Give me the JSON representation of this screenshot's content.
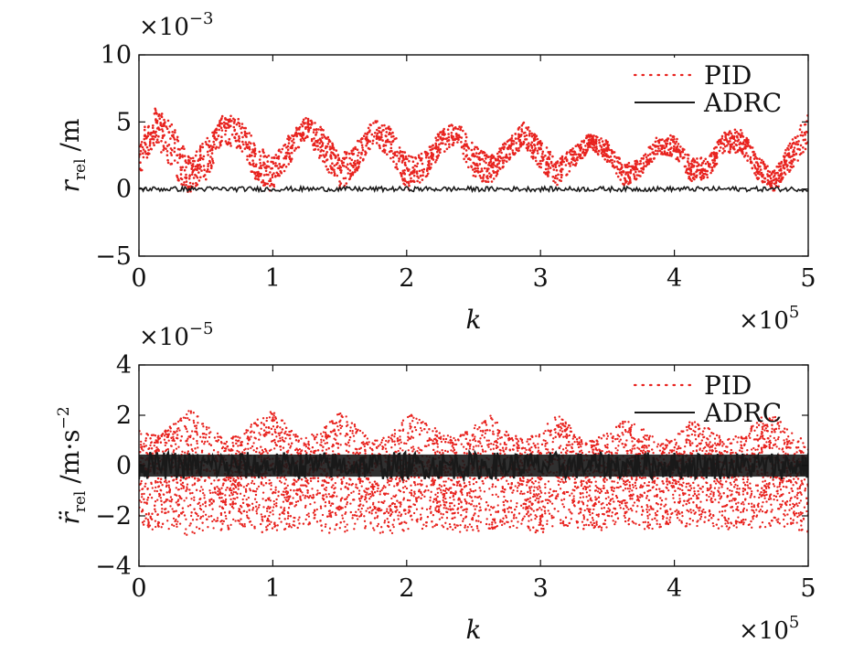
{
  "chart_data": [
    {
      "type": "scatter",
      "xlabel": "k",
      "x_multiplier": "×10",
      "x_exponent": "5",
      "ylabel_symbol": "r",
      "ylabel_subscript": "rel",
      "ylabel_unit": "/m",
      "y_multiplier": "×10",
      "y_exponent": "−3",
      "xlim": [
        0,
        5
      ],
      "ylim": [
        -5,
        10
      ],
      "x_ticks": [
        0,
        1,
        2,
        3,
        4,
        5
      ],
      "x_tick_labels": [
        "0",
        "1",
        "2",
        "3",
        "4",
        "5"
      ],
      "y_ticks": [
        -5,
        0,
        5,
        10
      ],
      "y_tick_labels": [
        "−5",
        "0",
        "5",
        "10"
      ],
      "grid": false,
      "legend_position": "top-right",
      "legend": [
        "PID",
        "ADRC"
      ],
      "series": [
        {
          "name": "PID",
          "style": "dotted",
          "color": "#e8231f",
          "x": [
            0,
            0.125,
            0.25,
            0.375,
            0.5,
            0.625,
            0.75,
            0.875,
            1.0,
            1.125,
            1.25,
            1.375,
            1.5,
            1.625,
            1.75,
            1.875,
            2.0,
            2.125,
            2.25,
            2.375,
            2.5,
            2.625,
            2.75,
            2.875,
            3.0,
            3.125,
            3.25,
            3.375,
            3.5,
            3.625,
            3.75,
            3.875,
            4.0,
            4.125,
            4.25,
            4.375,
            4.5,
            4.625,
            4.75,
            4.875,
            5.0
          ],
          "center": [
            2.5,
            4.8,
            3.0,
            1.0,
            2.2,
            4.4,
            4.2,
            2.0,
            1.0,
            3.0,
            4.6,
            3.2,
            1.2,
            2.4,
            4.3,
            3.5,
            1.2,
            1.6,
            3.4,
            4.3,
            2.0,
            1.4,
            2.8,
            4.1,
            2.6,
            1.2,
            2.4,
            3.6,
            2.8,
            1.0,
            1.6,
            3.3,
            3.2,
            1.4,
            1.6,
            3.5,
            3.6,
            1.6,
            0.6,
            2.6,
            4.4
          ],
          "half_width": [
            1.6,
            1.3,
            1.8,
            1.4,
            1.5,
            1.1,
            1.2,
            1.4,
            1.3,
            1.1,
            0.8,
            1.3,
            1.4,
            1.1,
            0.9,
            1.2,
            1.3,
            1.1,
            0.9,
            0.9,
            1.3,
            1.0,
            0.8,
            0.9,
            1.1,
            0.9,
            0.8,
            0.6,
            0.8,
            0.8,
            0.7,
            0.7,
            0.8,
            0.9,
            0.8,
            0.8,
            0.9,
            0.9,
            0.8,
            1.1,
            1.3
          ]
        },
        {
          "name": "ADRC",
          "style": "solid",
          "color": "#1a1a1a",
          "x": [
            0,
            5
          ],
          "y": [
            0,
            0
          ],
          "band_half_width": 0.18
        }
      ]
    },
    {
      "type": "scatter",
      "xlabel": "k",
      "x_multiplier": "×10",
      "x_exponent": "5",
      "ylabel_symbol": "r̈",
      "ylabel_subscript": "rel",
      "ylabel_unit": "/m·s",
      "ylabel_unit_exponent": "−2",
      "y_multiplier": "×10",
      "y_exponent": "−5",
      "xlim": [
        0,
        5
      ],
      "ylim": [
        -4,
        4
      ],
      "x_ticks": [
        0,
        1,
        2,
        3,
        4,
        5
      ],
      "x_tick_labels": [
        "0",
        "1",
        "2",
        "3",
        "4",
        "5"
      ],
      "y_ticks": [
        -4,
        -2,
        0,
        2,
        4
      ],
      "y_tick_labels": [
        "−4",
        "−2",
        "0",
        "2",
        "4"
      ],
      "grid": false,
      "legend_position": "top-right",
      "legend": [
        "PID",
        "ADRC"
      ],
      "series": [
        {
          "name": "PID",
          "style": "dotted",
          "color": "#e8231f",
          "x": [
            0,
            0.125,
            0.25,
            0.375,
            0.5,
            0.625,
            0.75,
            0.875,
            1.0,
            1.125,
            1.25,
            1.375,
            1.5,
            1.625,
            1.75,
            1.875,
            2.0,
            2.125,
            2.25,
            2.375,
            2.5,
            2.625,
            2.75,
            2.875,
            3.0,
            3.125,
            3.25,
            3.375,
            3.5,
            3.625,
            3.75,
            3.875,
            4.0,
            4.125,
            4.25,
            4.375,
            4.5,
            4.625,
            4.75,
            4.875,
            5.0
          ],
          "upper": [
            1.4,
            1.2,
            1.6,
            2.3,
            1.7,
            1.1,
            1.2,
            1.8,
            2.2,
            1.5,
            1.1,
            1.5,
            2.2,
            1.6,
            1.0,
            1.2,
            2.0,
            2.1,
            1.3,
            1.1,
            1.6,
            2.0,
            1.4,
            1.0,
            1.4,
            2.1,
            1.4,
            1.0,
            1.3,
            1.8,
            1.6,
            1.0,
            1.1,
            1.8,
            1.5,
            1.1,
            1.2,
            1.9,
            2.0,
            1.3,
            1.0
          ],
          "lower": [
            -2.4,
            -2.6,
            -2.5,
            -2.8,
            -2.6,
            -2.6,
            -2.4,
            -2.7,
            -2.6,
            -2.6,
            -2.4,
            -2.8,
            -2.7,
            -2.5,
            -2.6,
            -2.8,
            -2.6,
            -2.6,
            -2.5,
            -2.7,
            -2.6,
            -2.7,
            -2.5,
            -2.6,
            -2.7,
            -2.4,
            -2.6,
            -2.5,
            -2.6,
            -2.3,
            -2.5,
            -2.6,
            -2.4,
            -2.5,
            -2.5,
            -2.6,
            -2.4,
            -2.6,
            -2.5,
            -2.4,
            -2.8
          ]
        },
        {
          "name": "ADRC",
          "style": "solid",
          "color": "#1a1a1a",
          "x": [
            0,
            5
          ],
          "y": [
            0,
            0
          ],
          "band_half_width": 0.55
        }
      ]
    }
  ]
}
